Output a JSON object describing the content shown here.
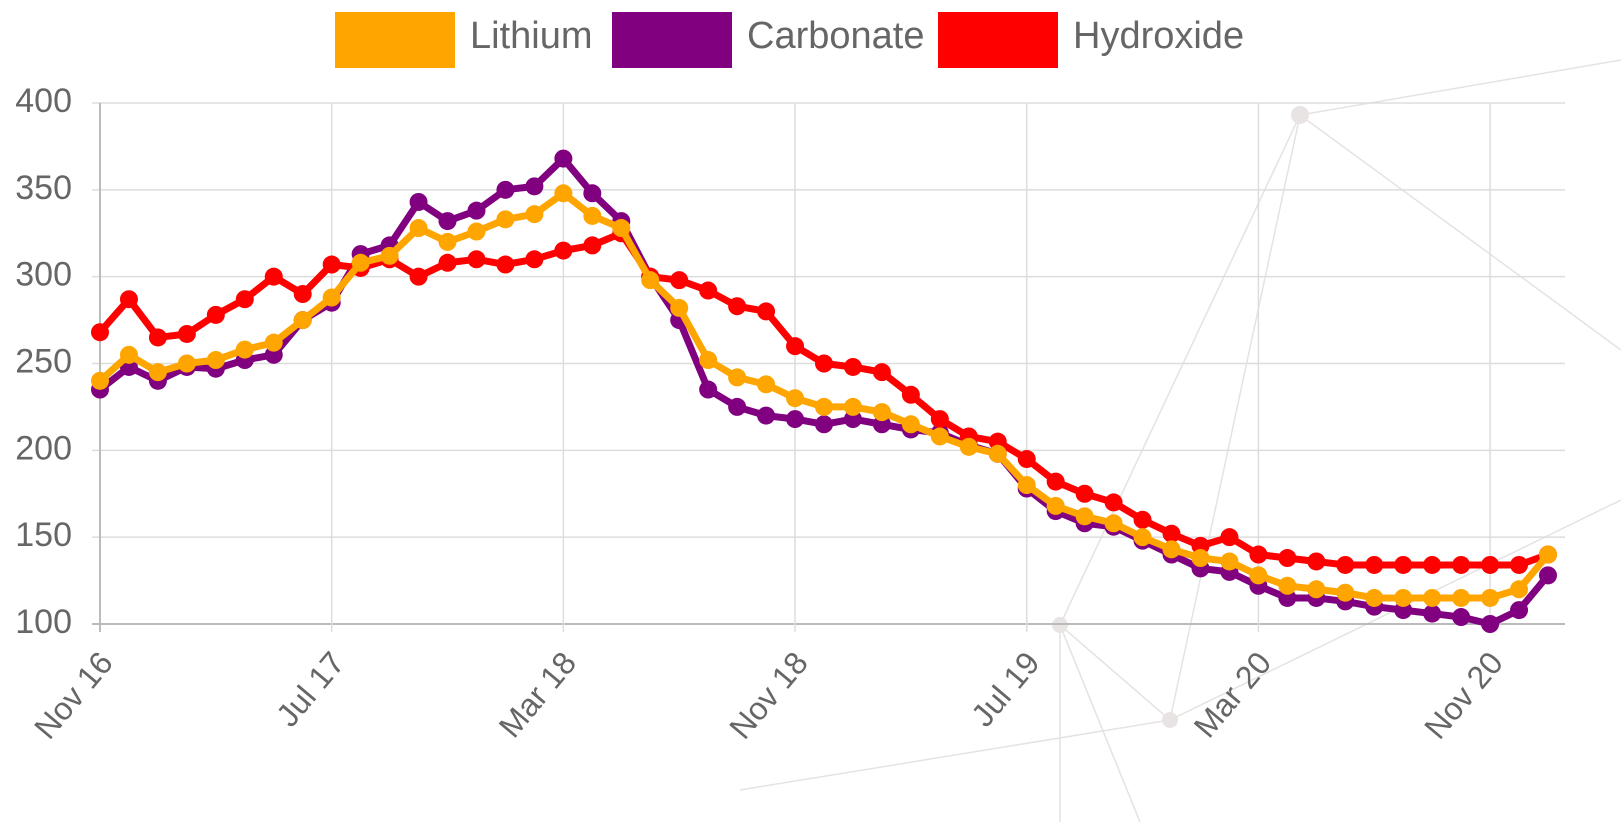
{
  "chart_data": {
    "type": "line",
    "categories": [
      "Nov 16",
      null,
      null,
      null,
      null,
      null,
      null,
      null,
      "Jul 17",
      null,
      null,
      null,
      null,
      null,
      null,
      null,
      "Mar 18",
      null,
      null,
      null,
      null,
      null,
      null,
      null,
      "Nov 18",
      null,
      null,
      null,
      null,
      null,
      null,
      null,
      "Jul 19",
      null,
      null,
      null,
      null,
      null,
      null,
      null,
      "Mar 20",
      null,
      null,
      null,
      null,
      null,
      null,
      null,
      "Nov 20",
      null,
      null
    ],
    "series": [
      {
        "name": "Lithium",
        "color": "#ffa500",
        "values": [
          240,
          255,
          245,
          250,
          252,
          258,
          262,
          275,
          288,
          308,
          312,
          328,
          320,
          326,
          333,
          336,
          348,
          335,
          328,
          298,
          282,
          252,
          242,
          238,
          230,
          225,
          225,
          222,
          215,
          208,
          202,
          198,
          180,
          168,
          162,
          158,
          150,
          143,
          138,
          136,
          128,
          122,
          120,
          118,
          115,
          115,
          115,
          115,
          115,
          120,
          140
        ]
      },
      {
        "name": "Carbonate",
        "color": "#800080",
        "values": [
          235,
          248,
          240,
          248,
          247,
          252,
          255,
          275,
          285,
          313,
          318,
          343,
          332,
          338,
          350,
          352,
          368,
          348,
          332,
          300,
          275,
          235,
          225,
          220,
          218,
          215,
          218,
          215,
          212,
          210,
          203,
          198,
          178,
          165,
          158,
          156,
          148,
          140,
          132,
          130,
          122,
          115,
          115,
          113,
          110,
          108,
          106,
          104,
          100,
          108,
          128
        ]
      },
      {
        "name": "Hydroxide",
        "color": "#ff0000",
        "values": [
          268,
          287,
          265,
          267,
          278,
          287,
          300,
          290,
          307,
          305,
          310,
          300,
          308,
          310,
          307,
          310,
          315,
          318,
          325,
          300,
          298,
          292,
          283,
          280,
          260,
          250,
          248,
          245,
          232,
          218,
          208,
          205,
          195,
          182,
          175,
          170,
          160,
          152,
          145,
          150,
          140,
          138,
          136,
          134,
          134,
          134,
          134,
          134,
          134,
          134,
          140
        ]
      }
    ],
    "ylim": [
      100,
      400
    ],
    "yticks": [
      100,
      150,
      200,
      250,
      300,
      350,
      400
    ],
    "grid": true,
    "legend": "top"
  }
}
